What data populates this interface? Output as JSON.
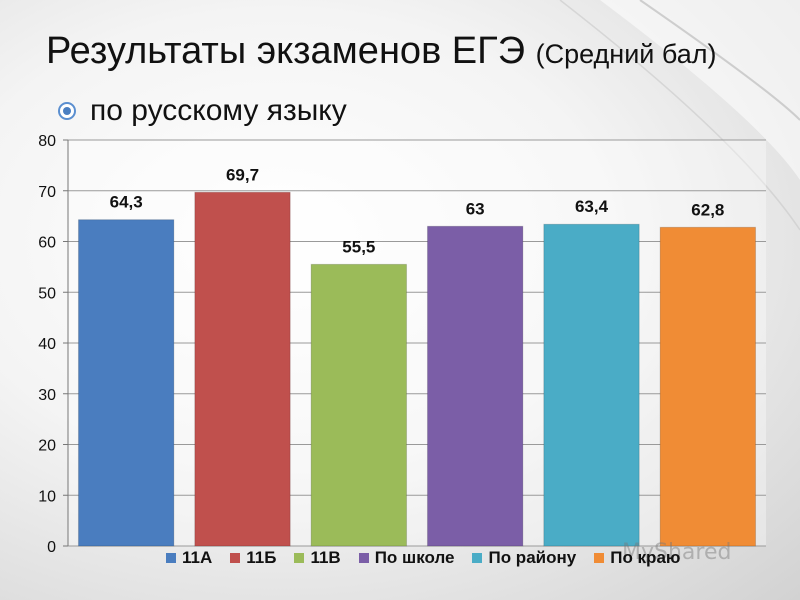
{
  "header": {
    "title_main": "Результаты экзаменов ЕГЭ",
    "title_sub": "(Средний бал)",
    "subtitle": "по русскому языку",
    "bullet_icon": "target-bullet-icon"
  },
  "watermark": "MyShared",
  "chart_data": {
    "type": "bar",
    "categories": [
      "11А",
      "11Б",
      "11В",
      "По школе",
      "По району",
      "По краю"
    ],
    "values": [
      64.3,
      69.7,
      55.5,
      63,
      63.4,
      62.8
    ],
    "value_labels": [
      "64,3",
      "69,7",
      "55,5",
      "63",
      "63,4",
      "62,8"
    ],
    "colors": [
      "#4a7dbf",
      "#c0504d",
      "#9bbb59",
      "#7b5ea7",
      "#4aacc6",
      "#f08c35"
    ],
    "y_ticks": [
      "0",
      "10",
      "20",
      "30",
      "40",
      "50",
      "60",
      "70",
      "80"
    ],
    "ylim": [
      0,
      80
    ],
    "title": "",
    "xlabel": "",
    "ylabel": "",
    "grid": true,
    "legend_position": "bottom"
  }
}
